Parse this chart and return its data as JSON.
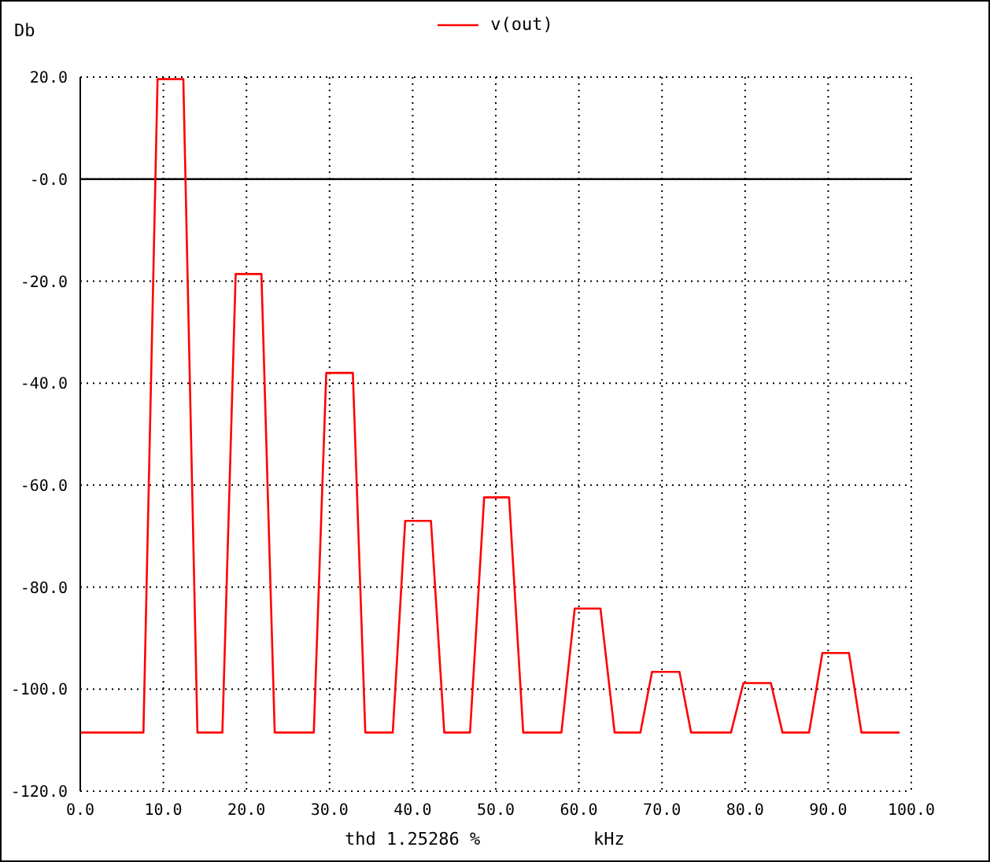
{
  "chart_data": {
    "type": "line",
    "ylabel": "Db",
    "xlabel": "kHz",
    "annotations": [
      "thd 1.25286 %"
    ],
    "legend": "top",
    "grid": true,
    "line_style": "solid",
    "xlim": [
      0,
      100
    ],
    "ylim": [
      -120,
      20
    ],
    "xticks": [
      {
        "value": 0,
        "label": "0.0"
      },
      {
        "value": 10,
        "label": "10.0"
      },
      {
        "value": 20,
        "label": "20.0"
      },
      {
        "value": 30,
        "label": "30.0"
      },
      {
        "value": 40,
        "label": "40.0"
      },
      {
        "value": 50,
        "label": "50.0"
      },
      {
        "value": 60,
        "label": "60.0"
      },
      {
        "value": 70,
        "label": "70.0"
      },
      {
        "value": 80,
        "label": "80.0"
      },
      {
        "value": 90,
        "label": "90.0"
      },
      {
        "value": 100,
        "label": "100.0"
      }
    ],
    "yticks": [
      {
        "value": 20,
        "label": "20.0"
      },
      {
        "value": 0,
        "label": "-0.0"
      },
      {
        "value": -20,
        "label": "-20.0"
      },
      {
        "value": -40,
        "label": "-40.0"
      },
      {
        "value": -60,
        "label": "-60.0"
      },
      {
        "value": -80,
        "label": "-80.0"
      },
      {
        "value": -100,
        "label": "-100.0"
      },
      {
        "value": -120,
        "label": "-120.0"
      }
    ],
    "ref_lines": [
      {
        "axis": "y",
        "value": 0,
        "color": "#000000",
        "line_style": "solid"
      }
    ],
    "series": [
      {
        "name": "v(out)",
        "color": "#ff0000",
        "x": [
          0,
          7.6,
          9.3,
          12.4,
          14.1,
          17.1,
          18.7,
          21.8,
          23.4,
          28.1,
          29.6,
          32.8,
          34.3,
          37.6,
          39.1,
          42.2,
          43.8,
          46.9,
          48.6,
          51.6,
          53.3,
          57.9,
          59.5,
          62.6,
          64.3,
          67.4,
          68.8,
          72.1,
          73.5,
          78.3,
          79.8,
          83.1,
          84.5,
          87.7,
          89.3,
          92.5,
          94.0,
          98.6
        ],
        "values": [
          -108.5,
          -108.5,
          19.6,
          19.6,
          -108.5,
          -108.5,
          -18.6,
          -18.6,
          -108.5,
          -108.5,
          -38,
          -38,
          -108.5,
          -108.5,
          -67,
          -67,
          -108.5,
          -108.5,
          -62.4,
          -62.4,
          -108.5,
          -108.5,
          -84.2,
          -84.2,
          -108.5,
          -108.5,
          -96.6,
          -96.6,
          -108.5,
          -108.5,
          -98.8,
          -98.8,
          -108.5,
          -108.5,
          -92.9,
          -92.9,
          -108.5,
          -108.5
        ]
      }
    ]
  }
}
